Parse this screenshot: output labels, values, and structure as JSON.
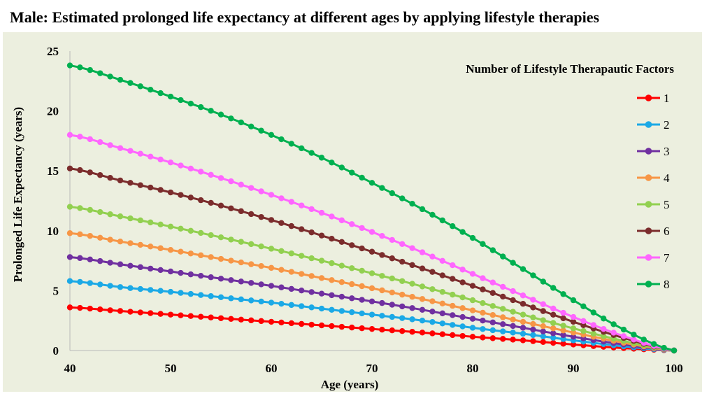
{
  "title": "Male: Estimated prolonged life expectancy at different ages by applying lifestyle therapies",
  "chart_data": {
    "type": "line",
    "xlabel": "Age (years)",
    "ylabel": "Prolonged Life Expectancy (years)",
    "xlim": [
      40,
      100
    ],
    "ylim": [
      0,
      25
    ],
    "x_ticks": [
      40,
      50,
      60,
      70,
      80,
      90,
      100
    ],
    "y_ticks": [
      0,
      5,
      10,
      15,
      20,
      25
    ],
    "legend_title": "Number of Lifestyle Therapautic Factors",
    "legend_position": "right",
    "grid": false,
    "x": [
      40,
      45,
      50,
      55,
      60,
      65,
      70,
      75,
      80,
      85,
      90,
      95,
      100
    ],
    "series": [
      {
        "name": "1",
        "color": "#ff0000",
        "values": [
          3.6,
          3.3,
          3.0,
          2.7,
          2.4,
          2.1,
          1.8,
          1.5,
          1.15,
          0.85,
          0.5,
          0.2,
          0
        ]
      },
      {
        "name": "2",
        "color": "#1ba9e6",
        "values": [
          5.8,
          5.3,
          4.9,
          4.45,
          4.0,
          3.5,
          3.0,
          2.5,
          1.9,
          1.4,
          0.85,
          0.35,
          0
        ]
      },
      {
        "name": "3",
        "color": "#7030a0",
        "values": [
          7.8,
          7.2,
          6.6,
          6.0,
          5.4,
          4.75,
          4.1,
          3.4,
          2.65,
          1.9,
          1.15,
          0.5,
          0
        ]
      },
      {
        "name": "4",
        "color": "#f79646",
        "values": [
          9.8,
          9.1,
          8.4,
          7.65,
          6.9,
          6.05,
          5.2,
          4.3,
          3.35,
          2.4,
          1.5,
          0.65,
          0
        ]
      },
      {
        "name": "5",
        "color": "#92d050",
        "values": [
          12.0,
          11.2,
          10.35,
          9.45,
          8.5,
          7.5,
          6.45,
          5.35,
          4.2,
          3.0,
          1.85,
          0.8,
          0
        ]
      },
      {
        "name": "6",
        "color": "#7b2c2c",
        "values": [
          15.2,
          14.2,
          13.2,
          12.1,
          10.9,
          9.6,
          8.25,
          6.85,
          5.4,
          3.9,
          2.4,
          1.05,
          0
        ]
      },
      {
        "name": "7",
        "color": "#ff66ff",
        "values": [
          18.0,
          16.9,
          15.7,
          14.4,
          13.0,
          11.5,
          9.9,
          8.2,
          6.4,
          4.6,
          2.8,
          1.2,
          0
        ]
      },
      {
        "name": "8",
        "color": "#00b050",
        "values": [
          23.8,
          22.6,
          21.2,
          19.7,
          18.0,
          16.1,
          14.0,
          11.8,
          9.4,
          6.8,
          4.2,
          1.75,
          0
        ]
      }
    ]
  }
}
